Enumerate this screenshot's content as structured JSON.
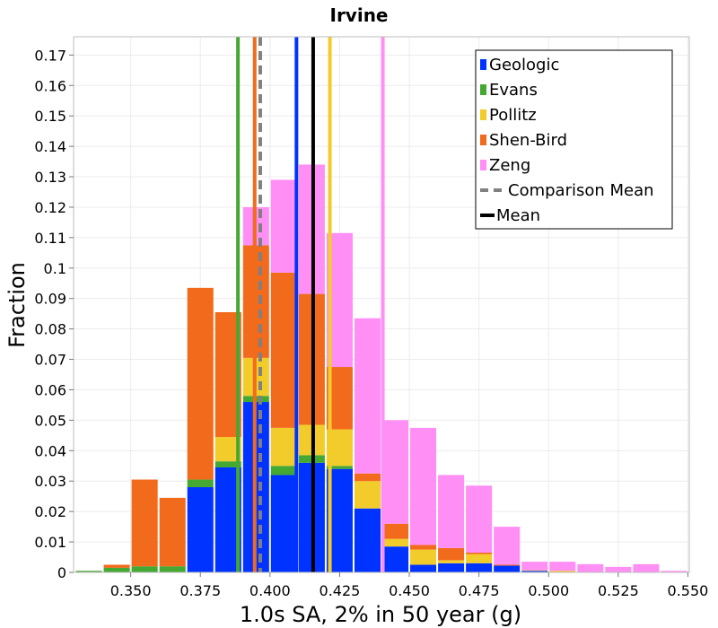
{
  "chart_data": {
    "type": "bar",
    "stacked": true,
    "title": "Irvine",
    "xlabel": "1.0s SA, 2% in 50 year (g)",
    "ylabel": "Fraction",
    "xlim": [
      0.3295,
      0.5505
    ],
    "ylim": [
      0,
      0.176
    ],
    "grid": true,
    "legend_position": "top-right",
    "bin_width": 0.01,
    "x_ticks": [
      0.35,
      0.375,
      0.4,
      0.425,
      0.45,
      0.475,
      0.5,
      0.525,
      0.55
    ],
    "x_tick_labels": [
      "0.350",
      "0.375",
      "0.400",
      "0.425",
      "0.450",
      "0.475",
      "0.500",
      "0.525",
      "0.550"
    ],
    "y_ticks": [
      0,
      0.01,
      0.02,
      0.03,
      0.04,
      0.05,
      0.06,
      0.07,
      0.08,
      0.09,
      0.1,
      0.11,
      0.12,
      0.13,
      0.14,
      0.15,
      0.16,
      0.17
    ],
    "y_tick_labels": [
      "0",
      "0.01",
      "0.02",
      "0.03",
      "0.04",
      "0.05",
      "0.06",
      "0.07",
      "0.08",
      "0.09",
      "0.1",
      "0.11",
      "0.12",
      "0.13",
      "0.14",
      "0.15",
      "0.16",
      "0.17"
    ],
    "bin_centers": [
      0.335,
      0.345,
      0.355,
      0.365,
      0.375,
      0.385,
      0.395,
      0.405,
      0.415,
      0.425,
      0.435,
      0.445,
      0.455,
      0.465,
      0.475,
      0.485,
      0.495,
      0.505,
      0.515,
      0.525,
      0.535,
      0.545
    ],
    "series": [
      {
        "name": "Geologic",
        "color": "#0033ff",
        "values": [
          0,
          0,
          0,
          0,
          0.028,
          0.0345,
          0.056,
          0.032,
          0.036,
          0.034,
          0.021,
          0.0085,
          0.0025,
          0.003,
          0.003,
          0.0022,
          0.0005,
          0,
          0,
          0,
          0,
          0
        ]
      },
      {
        "name": "Evans",
        "color": "#44a833",
        "values": [
          0.0005,
          0.0015,
          0.002,
          0.002,
          0.0025,
          0.002,
          0.002,
          0.003,
          0.0025,
          0.001,
          0,
          0,
          0,
          0,
          0,
          0,
          0,
          0,
          0,
          0,
          0,
          0
        ]
      },
      {
        "name": "Pollitz",
        "color": "#f2cc2b",
        "values": [
          0,
          0,
          0,
          0,
          0,
          0.008,
          0.0125,
          0.0125,
          0.01,
          0.012,
          0.009,
          0.0025,
          0.005,
          0.001,
          0.003,
          0,
          0.0002,
          0.0005,
          0,
          0,
          0,
          0
        ]
      },
      {
        "name": "Shen-Bird",
        "color": "#f26a1b",
        "values": [
          0,
          0.001,
          0.0285,
          0.0225,
          0.063,
          0.041,
          0.037,
          0.051,
          0.043,
          0.0205,
          0.0025,
          0.005,
          0.0015,
          0.004,
          0.0005,
          0.0003,
          0,
          0,
          0,
          0,
          0,
          0
        ]
      },
      {
        "name": "Zeng",
        "color": "#ff8ef5",
        "values": [
          0,
          0,
          0,
          0,
          0,
          0,
          0.0125,
          0.0305,
          0.0425,
          0.044,
          0.051,
          0.034,
          0.0385,
          0.024,
          0.022,
          0.0125,
          0.0028,
          0.003,
          0.0027,
          0.0018,
          0.0027,
          0.0005
        ]
      }
    ],
    "vertical_lines": [
      {
        "name": "Evans",
        "x": 0.3885,
        "color": "#44a833",
        "style": "solid"
      },
      {
        "name": "Shen-Bird",
        "x": 0.3945,
        "color": "#f26a1b",
        "style": "solid"
      },
      {
        "name": "Comparison Mean",
        "x": 0.3965,
        "color": "#808080",
        "style": "dashed"
      },
      {
        "name": "Geologic",
        "x": 0.4095,
        "color": "#0033ff",
        "style": "solid"
      },
      {
        "name": "Mean",
        "x": 0.4155,
        "color": "#000000",
        "style": "solid"
      },
      {
        "name": "Pollitz",
        "x": 0.4215,
        "color": "#f2cc2b",
        "style": "solid"
      },
      {
        "name": "Zeng",
        "x": 0.4405,
        "color": "#ff8ef5",
        "style": "solid"
      }
    ],
    "legend": [
      {
        "label": "Geologic",
        "kind": "box",
        "color": "#0033ff"
      },
      {
        "label": "Evans",
        "kind": "box",
        "color": "#44a833"
      },
      {
        "label": "Pollitz",
        "kind": "box",
        "color": "#f2cc2b"
      },
      {
        "label": "Shen-Bird",
        "kind": "box",
        "color": "#f26a1b"
      },
      {
        "label": "Zeng",
        "kind": "box",
        "color": "#ff8ef5"
      },
      {
        "label": "Comparison Mean",
        "kind": "dashed",
        "color": "#808080"
      },
      {
        "label": "Mean",
        "kind": "line",
        "color": "#000000"
      }
    ]
  }
}
